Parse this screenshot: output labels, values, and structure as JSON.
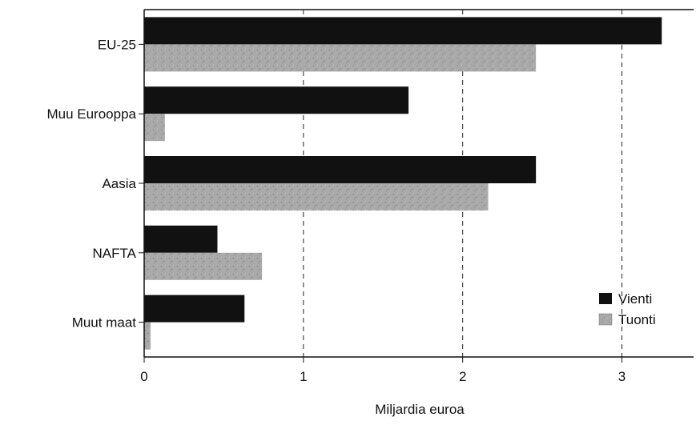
{
  "chart_data": {
    "type": "bar",
    "orientation": "horizontal",
    "categories": [
      "EU-25",
      "Muu Eurooppa",
      "Aasia",
      "NAFTA",
      "Muut maat"
    ],
    "series": [
      {
        "name": "Vienti",
        "values": [
          3.25,
          1.66,
          2.46,
          0.46,
          0.63
        ],
        "color": "#111111"
      },
      {
        "name": "Tuonti",
        "values": [
          2.46,
          0.13,
          2.16,
          0.74,
          0.04
        ],
        "color": "#a9a9a9"
      }
    ],
    "xlabel": "Miljardia euroa",
    "ylabel": "",
    "xlim": [
      0,
      3.45
    ],
    "xticks": [
      0,
      1,
      2,
      3
    ],
    "xtick_labels": [
      "0",
      "1",
      "2",
      "3"
    ],
    "grid": "vertical dashed",
    "legend_position": "bottom-right"
  }
}
